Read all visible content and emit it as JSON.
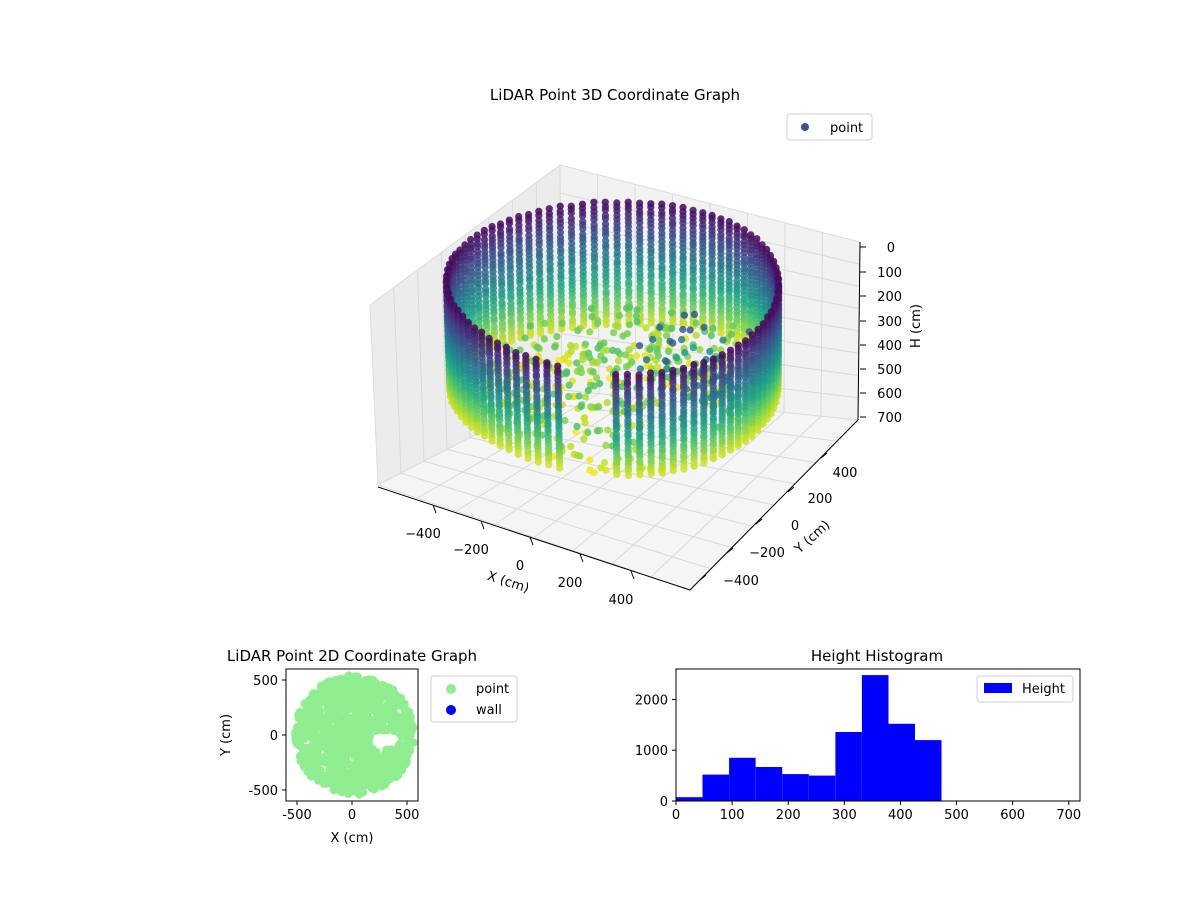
{
  "chart_data": [
    {
      "type": "scatter",
      "title": "LiDAR Point 3D Coordinate Graph",
      "xlabel": "X (cm)",
      "ylabel": "Y (cm)",
      "zlabel": "H (cm)",
      "x_ticks": [
        "−400",
        "−200",
        "0",
        "200",
        "400"
      ],
      "y_ticks": [
        "400",
        "200",
        "0",
        "−200",
        "−400"
      ],
      "z_ticks": [
        "0",
        "100",
        "200",
        "300",
        "400",
        "500",
        "600",
        "700"
      ],
      "xlim": [
        -550,
        550
      ],
      "ylim": [
        -550,
        550
      ],
      "zlim": [
        0,
        700
      ],
      "z_inverted": true,
      "colormap": "viridis",
      "legend": {
        "entries": [
          "point"
        ],
        "placement": "upper right",
        "marker_color": "#3b528b"
      },
      "points_summary": "cylindrical wall of points, radius ~550 cm, heights 0-700 cm, floor points ~300-450 cm"
    },
    {
      "type": "scatter",
      "title": "LiDAR Point 2D Coordinate Graph",
      "xlabel": "X (cm)",
      "ylabel": "Y (cm)",
      "x_ticks": [
        -500,
        0,
        500
      ],
      "y_ticks": [
        500,
        0,
        -500
      ],
      "xlim": [
        -600,
        600
      ],
      "ylim": [
        -600,
        600
      ],
      "series": [
        {
          "name": "point",
          "color": "#90ee90"
        },
        {
          "name": "wall",
          "color": "#0000ff"
        }
      ],
      "legend": {
        "placement": "outside right"
      }
    },
    {
      "type": "bar",
      "title": "Height Histogram",
      "xlabel": "",
      "ylabel": "",
      "bin_edges": [
        0,
        47.3,
        94.7,
        142,
        189.3,
        236.7,
        284,
        331.3,
        378.7,
        426,
        473.3
      ],
      "values": [
        75,
        520,
        850,
        670,
        530,
        500,
        1360,
        2480,
        1520,
        1200
      ],
      "xlim": [
        0,
        720
      ],
      "ylim": [
        0,
        2600
      ],
      "x_ticks": [
        0,
        100,
        200,
        300,
        400,
        500,
        600,
        700
      ],
      "y_ticks": [
        0,
        1000,
        2000
      ],
      "series": [
        {
          "name": "Height",
          "color": "#0000ff"
        }
      ],
      "legend": {
        "placement": "upper right"
      }
    }
  ]
}
